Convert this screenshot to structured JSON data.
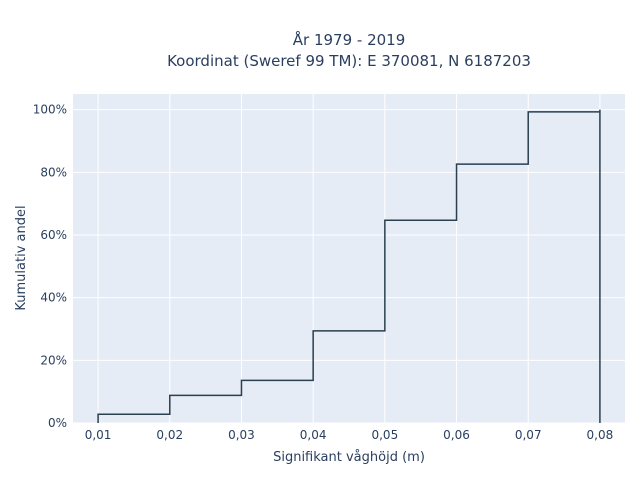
{
  "chart_data": {
    "type": "line",
    "line_shape": "step",
    "title_line1": "År 1979 - 2019",
    "title_line2": "Koordinat (Sweref 99 TM): E 370081, N 6187203",
    "xlabel": "Signifikant våghöjd (m)",
    "ylabel": "Kumulativ andel",
    "xlim": [
      0.0065,
      0.0835
    ],
    "ylim": [
      0,
      1.05
    ],
    "x_ticks": [
      0.01,
      0.02,
      0.03,
      0.04,
      0.05,
      0.06,
      0.07,
      0.08
    ],
    "x_tick_labels": [
      "0,01",
      "0,02",
      "0,03",
      "0,04",
      "0,05",
      "0,06",
      "0,07",
      "0,08"
    ],
    "y_ticks": [
      0,
      0.2,
      0.4,
      0.6,
      0.8,
      1.0
    ],
    "y_tick_labels": [
      "0%",
      "20%",
      "40%",
      "60%",
      "80%",
      "100%"
    ],
    "x": [
      0.01,
      0.02,
      0.03,
      0.04,
      0.05,
      0.06,
      0.07,
      0.08
    ],
    "y": [
      0.028,
      0.088,
      0.136,
      0.294,
      0.647,
      0.826,
      0.993,
      1.0
    ],
    "grid": true,
    "plot_background": "#e5ecf6",
    "line_color": "#2a3f4f",
    "grid_color": "#ffffff"
  }
}
